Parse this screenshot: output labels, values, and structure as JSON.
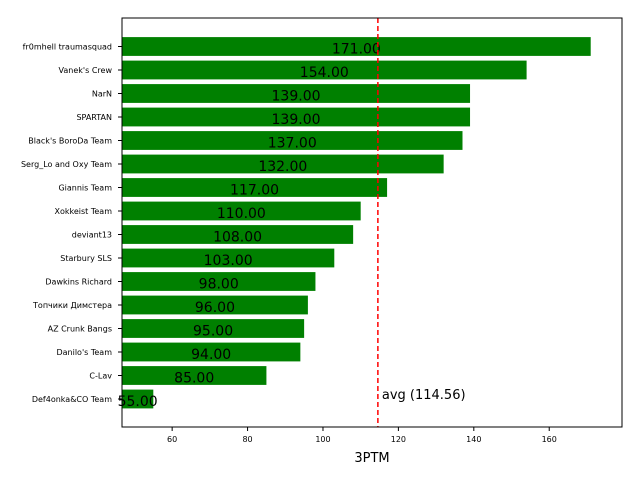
{
  "chart_data": {
    "type": "bar",
    "orientation": "horizontal",
    "categories": [
      "fr0mhell traumasquad",
      "Vanek's Crew",
      "NarN",
      "SPARTAN",
      "Black's BoroDa Team",
      "Serg_Lo and Oxy Team",
      "Giannis Team",
      "Xokkeist Team",
      "deviant13",
      "Starbury SLS",
      "Dawkins Richard",
      "Топчики Димстера",
      "AZ Crunk Bangs",
      "Danilo's Team",
      "C-Lav",
      "Def4onka&CO Team"
    ],
    "values": [
      171,
      154,
      139,
      139,
      137,
      132,
      117,
      110,
      108,
      103,
      98,
      96,
      95,
      94,
      85,
      55
    ],
    "value_labels": [
      "171.00",
      "154.00",
      "139.00",
      "139.00",
      "137.00",
      "132.00",
      "117.00",
      "110.00",
      "108.00",
      "103.00",
      "98.00",
      "96.00",
      "95.00",
      "94.00",
      "85.00",
      "55.00"
    ],
    "xlabel": "3PTM",
    "xlim": [
      46.7,
      179.3
    ],
    "xticks": [
      60,
      80,
      100,
      120,
      140,
      160
    ],
    "bar_color": "#008000",
    "average": {
      "value": 114.56,
      "label": "avg (114.56)",
      "color": "#ff0000",
      "style": "dashed"
    },
    "grid": false
  }
}
